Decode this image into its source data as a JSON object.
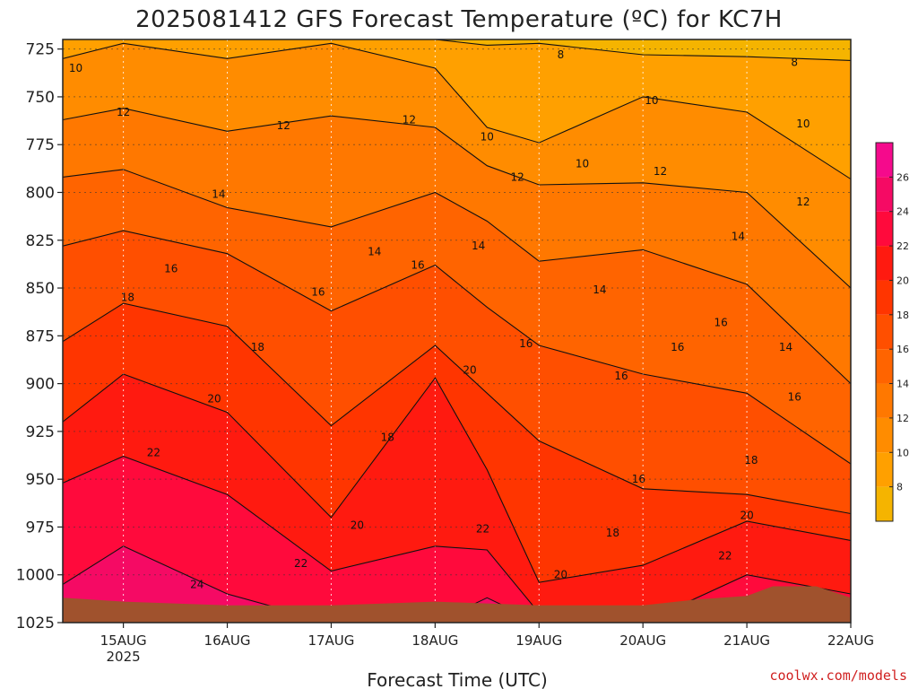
{
  "chart_data": {
    "type": "heatmap",
    "title": "2025081412 GFS Forecast Temperature (ºC) for KC7H",
    "xlabel": "Forecast Time (UTC)",
    "ylabel": "",
    "credit": "coolwx.com/models",
    "y_axis": {
      "unit": "hPa",
      "range": [
        1025,
        720
      ],
      "ticks": [
        725,
        750,
        775,
        800,
        825,
        850,
        875,
        900,
        925,
        950,
        975,
        1000,
        1025
      ],
      "inverted": true,
      "grid": true
    },
    "x_axis": {
      "range_hours": [
        -14,
        168
      ],
      "ticks": [
        {
          "hour": 0,
          "label": "15AUG",
          "sublabel": "2025"
        },
        {
          "hour": 24,
          "label": "16AUG",
          "sublabel": ""
        },
        {
          "hour": 48,
          "label": "17AUG",
          "sublabel": ""
        },
        {
          "hour": 72,
          "label": "18AUG",
          "sublabel": ""
        },
        {
          "hour": 96,
          "label": "19AUG",
          "sublabel": ""
        },
        {
          "hour": 120,
          "label": "20AUG",
          "sublabel": ""
        },
        {
          "hour": 144,
          "label": "21AUG",
          "sublabel": ""
        },
        {
          "hour": 168,
          "label": "22AUG",
          "sublabel": ""
        }
      ],
      "grid": true
    },
    "colorbar": {
      "ticks": [
        8,
        10,
        12,
        14,
        16,
        18,
        20,
        22,
        24,
        26
      ],
      "levels": [
        6,
        8,
        10,
        12,
        14,
        16,
        18,
        20,
        22,
        24,
        26,
        28
      ],
      "colors": [
        "#f5b400",
        "#ffa000",
        "#ff8c00",
        "#ff7800",
        "#ff6400",
        "#ff4f00",
        "#ff3500",
        "#ff1a10",
        "#ff0a3c",
        "#f50a64",
        "#f50a8c"
      ]
    },
    "contours": [
      {
        "level": 8,
        "hours": [
          -14,
          0,
          24,
          48,
          72,
          84,
          96,
          120,
          144,
          168
        ],
        "pressure": [
          720,
          720,
          720,
          720,
          720,
          723,
          722,
          728,
          729,
          731
        ]
      },
      {
        "level": 10,
        "hours": [
          -14,
          0,
          24,
          48,
          72,
          84,
          96,
          120,
          144,
          168
        ],
        "pressure": [
          730,
          722,
          730,
          722,
          735,
          766,
          774,
          750,
          758,
          793
        ]
      },
      {
        "level": 12,
        "hours": [
          -14,
          0,
          24,
          48,
          72,
          84,
          96,
          120,
          144,
          168
        ],
        "pressure": [
          762,
          756,
          768,
          760,
          766,
          786,
          796,
          795,
          800,
          850
        ]
      },
      {
        "level": 14,
        "hours": [
          -14,
          0,
          24,
          48,
          72,
          84,
          96,
          120,
          144,
          168
        ],
        "pressure": [
          792,
          788,
          808,
          818,
          800,
          815,
          836,
          830,
          848,
          900
        ]
      },
      {
        "level": 16,
        "hours": [
          -14,
          0,
          24,
          48,
          72,
          84,
          96,
          120,
          144,
          168
        ],
        "pressure": [
          828,
          820,
          832,
          862,
          838,
          860,
          880,
          895,
          905,
          942
        ]
      },
      {
        "level": 18,
        "hours": [
          -14,
          0,
          24,
          48,
          72,
          84,
          96,
          120,
          144,
          168
        ],
        "pressure": [
          878,
          858,
          870,
          922,
          880,
          905,
          930,
          955,
          958,
          968
        ]
      },
      {
        "level": 20,
        "hours": [
          -14,
          0,
          24,
          48,
          72,
          84,
          96,
          120,
          144,
          168
        ],
        "pressure": [
          920,
          895,
          915,
          970,
          897,
          945,
          1004,
          995,
          972,
          982
        ]
      },
      {
        "level": 22,
        "hours": [
          -14,
          0,
          24,
          48,
          72,
          84,
          96,
          120,
          144,
          168
        ],
        "pressure": [
          952,
          938,
          958,
          998,
          985,
          987,
          1020,
          1025,
          1000,
          1010
        ]
      },
      {
        "level": 24,
        "hours": [
          -14,
          0,
          24,
          48,
          72,
          84,
          96,
          120,
          144,
          168
        ],
        "pressure": [
          1005,
          985,
          1010,
          1025,
          1025,
          1012,
          1025,
          1025,
          1025,
          1025
        ]
      }
    ],
    "contour_labels": [
      {
        "text": "10",
        "hour": -11,
        "pressure": 735
      },
      {
        "text": "8",
        "hour": 101,
        "pressure": 728
      },
      {
        "text": "8",
        "hour": 155,
        "pressure": 732
      },
      {
        "text": "12",
        "hour": 0,
        "pressure": 758
      },
      {
        "text": "12",
        "hour": 37,
        "pressure": 765
      },
      {
        "text": "12",
        "hour": 66,
        "pressure": 762
      },
      {
        "text": "10",
        "hour": 84,
        "pressure": 771
      },
      {
        "text": "10",
        "hour": 122,
        "pressure": 752
      },
      {
        "text": "10",
        "hour": 106,
        "pressure": 785
      },
      {
        "text": "10",
        "hour": 157,
        "pressure": 764
      },
      {
        "text": "12",
        "hour": 91,
        "pressure": 792
      },
      {
        "text": "12",
        "hour": 124,
        "pressure": 789
      },
      {
        "text": "14",
        "hour": 22,
        "pressure": 801
      },
      {
        "text": "12",
        "hour": 157,
        "pressure": 805
      },
      {
        "text": "14",
        "hour": 58,
        "pressure": 831
      },
      {
        "text": "14",
        "hour": 82,
        "pressure": 828
      },
      {
        "text": "14",
        "hour": 142,
        "pressure": 823
      },
      {
        "text": "16",
        "hour": 11,
        "pressure": 840
      },
      {
        "text": "16",
        "hour": 68,
        "pressure": 838
      },
      {
        "text": "16",
        "hour": 45,
        "pressure": 852
      },
      {
        "text": "14",
        "hour": 110,
        "pressure": 851
      },
      {
        "text": "16",
        "hour": 138,
        "pressure": 868
      },
      {
        "text": "16",
        "hour": 128,
        "pressure": 881
      },
      {
        "text": "14",
        "hour": 153,
        "pressure": 881
      },
      {
        "text": "18",
        "hour": 1,
        "pressure": 855
      },
      {
        "text": "16",
        "hour": 93,
        "pressure": 879
      },
      {
        "text": "18",
        "hour": 31,
        "pressure": 881
      },
      {
        "text": "16",
        "hour": 115,
        "pressure": 896
      },
      {
        "text": "20",
        "hour": 80,
        "pressure": 893
      },
      {
        "text": "20",
        "hour": 21,
        "pressure": 908
      },
      {
        "text": "16",
        "hour": 155,
        "pressure": 907
      },
      {
        "text": "18",
        "hour": 61,
        "pressure": 928
      },
      {
        "text": "22",
        "hour": 7,
        "pressure": 936
      },
      {
        "text": "16",
        "hour": 119,
        "pressure": 950
      },
      {
        "text": "18",
        "hour": 145,
        "pressure": 940
      },
      {
        "text": "20",
        "hour": 54,
        "pressure": 974
      },
      {
        "text": "22",
        "hour": 83,
        "pressure": 976
      },
      {
        "text": "20",
        "hour": 144,
        "pressure": 969
      },
      {
        "text": "18",
        "hour": 113,
        "pressure": 978
      },
      {
        "text": "22",
        "hour": 41,
        "pressure": 994
      },
      {
        "text": "22",
        "hour": 139,
        "pressure": 990
      },
      {
        "text": "20",
        "hour": 101,
        "pressure": 1000
      },
      {
        "text": "24",
        "hour": 17,
        "pressure": 1005
      }
    ],
    "terrain": {
      "color": "#a0522d",
      "hours": [
        -14,
        0,
        24,
        48,
        72,
        96,
        120,
        132,
        144,
        150,
        160,
        168
      ],
      "pressure": [
        1012,
        1014,
        1016,
        1016,
        1014,
        1016,
        1016,
        1013,
        1011,
        1006,
        1006,
        1012
      ]
    }
  }
}
